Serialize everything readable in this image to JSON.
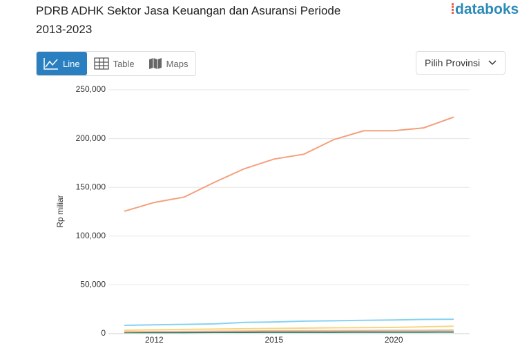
{
  "ui": {
    "logo": "databoks",
    "tabs": [
      "Line",
      "Table",
      "Maps"
    ],
    "dropdown": "Pilih Provinsi"
  },
  "chart_data": {
    "type": "line",
    "title": "PDRB ADHK Sektor Jasa Keuangan dan Asuransi Periode 2013-2023",
    "ylabel": "Rp miliar",
    "categories": [
      null,
      "2012",
      null,
      null,
      null,
      "2015",
      null,
      null,
      null,
      "2020",
      null,
      null
    ],
    "series": [
      {
        "color": "#f59f7b",
        "values": [
          125500,
          134500,
          140000,
          155000,
          169000,
          179000,
          184000,
          199000,
          208000,
          208000,
          211000,
          222000
        ]
      },
      {
        "color": "#86d2f0",
        "values": [
          8500,
          9000,
          9500,
          10000,
          11500,
          12000,
          12800,
          13200,
          13600,
          14000,
          14600,
          14800
        ]
      },
      {
        "color": "#f7d77c",
        "values": [
          3500,
          4000,
          4300,
          4700,
          5000,
          5300,
          5700,
          6000,
          6200,
          6400,
          7000,
          7600
        ]
      },
      {
        "color": "#f3b59a",
        "values": [
          2000,
          2200,
          2300,
          2500,
          2700,
          2900,
          3000,
          3100,
          3200,
          3300,
          3400,
          3600
        ]
      },
      {
        "color": "#2e7d64",
        "values": [
          1200,
          1300,
          1300,
          1400,
          1400,
          1500,
          1500,
          1500,
          1600,
          1600,
          1600,
          1700
        ]
      }
    ],
    "ylim": [
      0,
      250000
    ],
    "yticks": [
      0,
      {
        "value": 50000,
        "label": "50,000"
      },
      {
        "value": 100000,
        "label": "100,000"
      },
      {
        "value": 150000,
        "label": "150,000"
      },
      {
        "value": 200000,
        "label": "200,000"
      },
      {
        "value": 250000,
        "label": "250,000"
      }
    ],
    "grid": true
  }
}
